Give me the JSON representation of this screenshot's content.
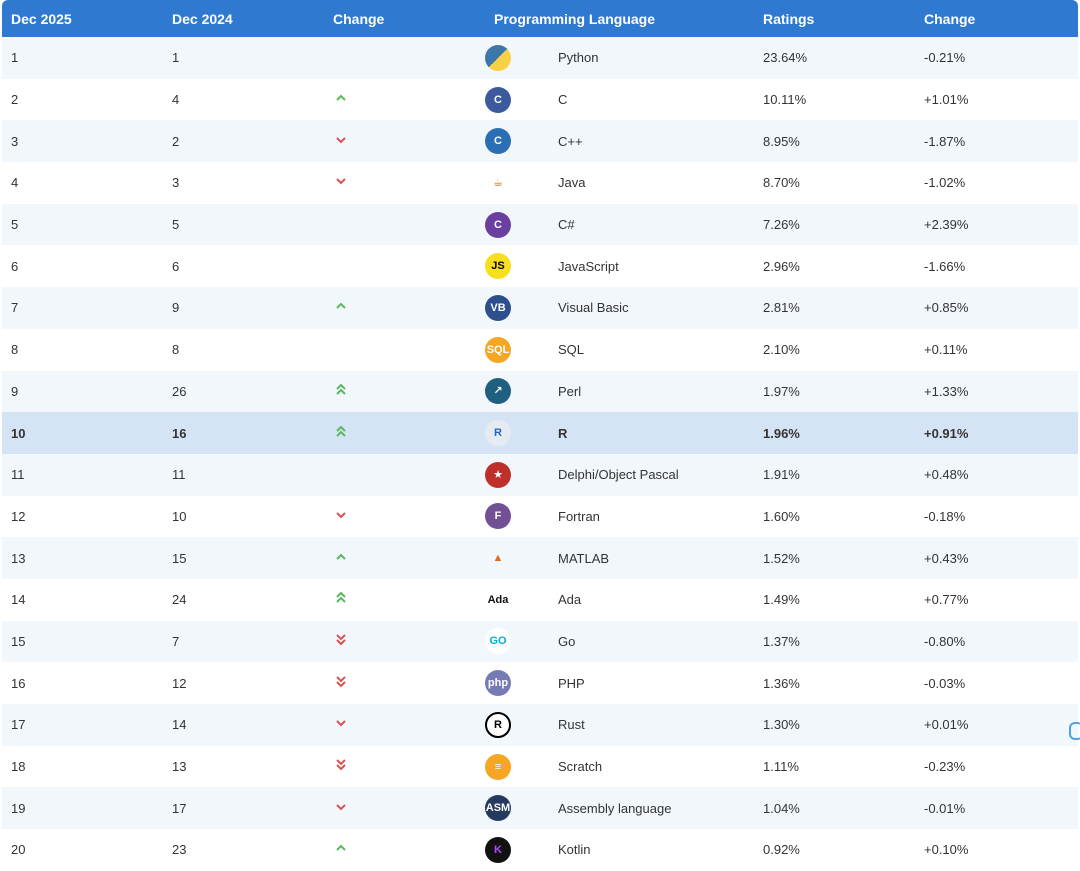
{
  "headers": {
    "current": "Dec 2025",
    "previous": "Dec 2024",
    "change": "Change",
    "language": "Programming Language",
    "ratings": "Ratings",
    "delta": "Change"
  },
  "rows": [
    {
      "rank": "1",
      "prev": "1",
      "trend": "none",
      "icon": "python-icon",
      "lang": "Python",
      "rating": "23.64%",
      "delta": "-0.21%"
    },
    {
      "rank": "2",
      "prev": "4",
      "trend": "up",
      "icon": "c-icon",
      "lang": "C",
      "rating": "10.11%",
      "delta": "+1.01%"
    },
    {
      "rank": "3",
      "prev": "2",
      "trend": "down",
      "icon": "cpp-icon",
      "lang": "C++",
      "rating": "8.95%",
      "delta": "-1.87%"
    },
    {
      "rank": "4",
      "prev": "3",
      "trend": "down",
      "icon": "java-icon",
      "lang": "Java",
      "rating": "8.70%",
      "delta": "-1.02%"
    },
    {
      "rank": "5",
      "prev": "5",
      "trend": "none",
      "icon": "csharp-icon",
      "lang": "C#",
      "rating": "7.26%",
      "delta": "+2.39%"
    },
    {
      "rank": "6",
      "prev": "6",
      "trend": "none",
      "icon": "javascript-icon",
      "icon_text": "JS",
      "lang": "JavaScript",
      "rating": "2.96%",
      "delta": "-1.66%"
    },
    {
      "rank": "7",
      "prev": "9",
      "trend": "up",
      "icon": "visual-basic-icon",
      "icon_text": "VB",
      "lang": "Visual Basic",
      "rating": "2.81%",
      "delta": "+0.85%"
    },
    {
      "rank": "8",
      "prev": "8",
      "trend": "none",
      "icon": "sql-icon",
      "icon_text": "SQL",
      "lang": "SQL",
      "rating": "2.10%",
      "delta": "+0.11%"
    },
    {
      "rank": "9",
      "prev": "26",
      "trend": "up2",
      "icon": "perl-icon",
      "lang": "Perl",
      "rating": "1.97%",
      "delta": "+1.33%"
    },
    {
      "rank": "10",
      "prev": "16",
      "trend": "up2",
      "icon": "r-icon",
      "icon_text": "R",
      "lang": "R",
      "rating": "1.96%",
      "delta": "+0.91%",
      "highlight": true
    },
    {
      "rank": "11",
      "prev": "11",
      "trend": "none",
      "icon": "delphi-icon",
      "lang": "Delphi/Object Pascal",
      "rating": "1.91%",
      "delta": "+0.48%"
    },
    {
      "rank": "12",
      "prev": "10",
      "trend": "down",
      "icon": "fortran-icon",
      "icon_text": "F",
      "lang": "Fortran",
      "rating": "1.60%",
      "delta": "-0.18%"
    },
    {
      "rank": "13",
      "prev": "15",
      "trend": "up",
      "icon": "matlab-icon",
      "lang": "MATLAB",
      "rating": "1.52%",
      "delta": "+0.43%"
    },
    {
      "rank": "14",
      "prev": "24",
      "trend": "up2",
      "icon": "ada-icon",
      "icon_text": "Ada",
      "lang": "Ada",
      "rating": "1.49%",
      "delta": "+0.77%"
    },
    {
      "rank": "15",
      "prev": "7",
      "trend": "down2",
      "icon": "go-icon",
      "icon_text": "GO",
      "lang": "Go",
      "rating": "1.37%",
      "delta": "-0.80%"
    },
    {
      "rank": "16",
      "prev": "12",
      "trend": "down2",
      "icon": "php-icon",
      "icon_text": "php",
      "lang": "PHP",
      "rating": "1.36%",
      "delta": "-0.03%"
    },
    {
      "rank": "17",
      "prev": "14",
      "trend": "down",
      "icon": "rust-icon",
      "icon_text": "R",
      "lang": "Rust",
      "rating": "1.30%",
      "delta": "+0.01%"
    },
    {
      "rank": "18",
      "prev": "13",
      "trend": "down2",
      "icon": "scratch-icon",
      "lang": "Scratch",
      "rating": "1.11%",
      "delta": "-0.23%"
    },
    {
      "rank": "19",
      "prev": "17",
      "trend": "down",
      "icon": "assembly-icon",
      "icon_text": "ASM",
      "lang": "Assembly language",
      "rating": "1.04%",
      "delta": "-0.01%"
    },
    {
      "rank": "20",
      "prev": "23",
      "trend": "up",
      "icon": "kotlin-icon",
      "lang": "Kotlin",
      "rating": "0.92%",
      "delta": "+0.10%"
    }
  ],
  "colors": {
    "header_bg": "#2f7ad0",
    "row_alt": "#f2f7fc",
    "row_highlight": "#d5e4f5",
    "trend_up": "#5cb85c",
    "trend_down": "#d9534f"
  }
}
